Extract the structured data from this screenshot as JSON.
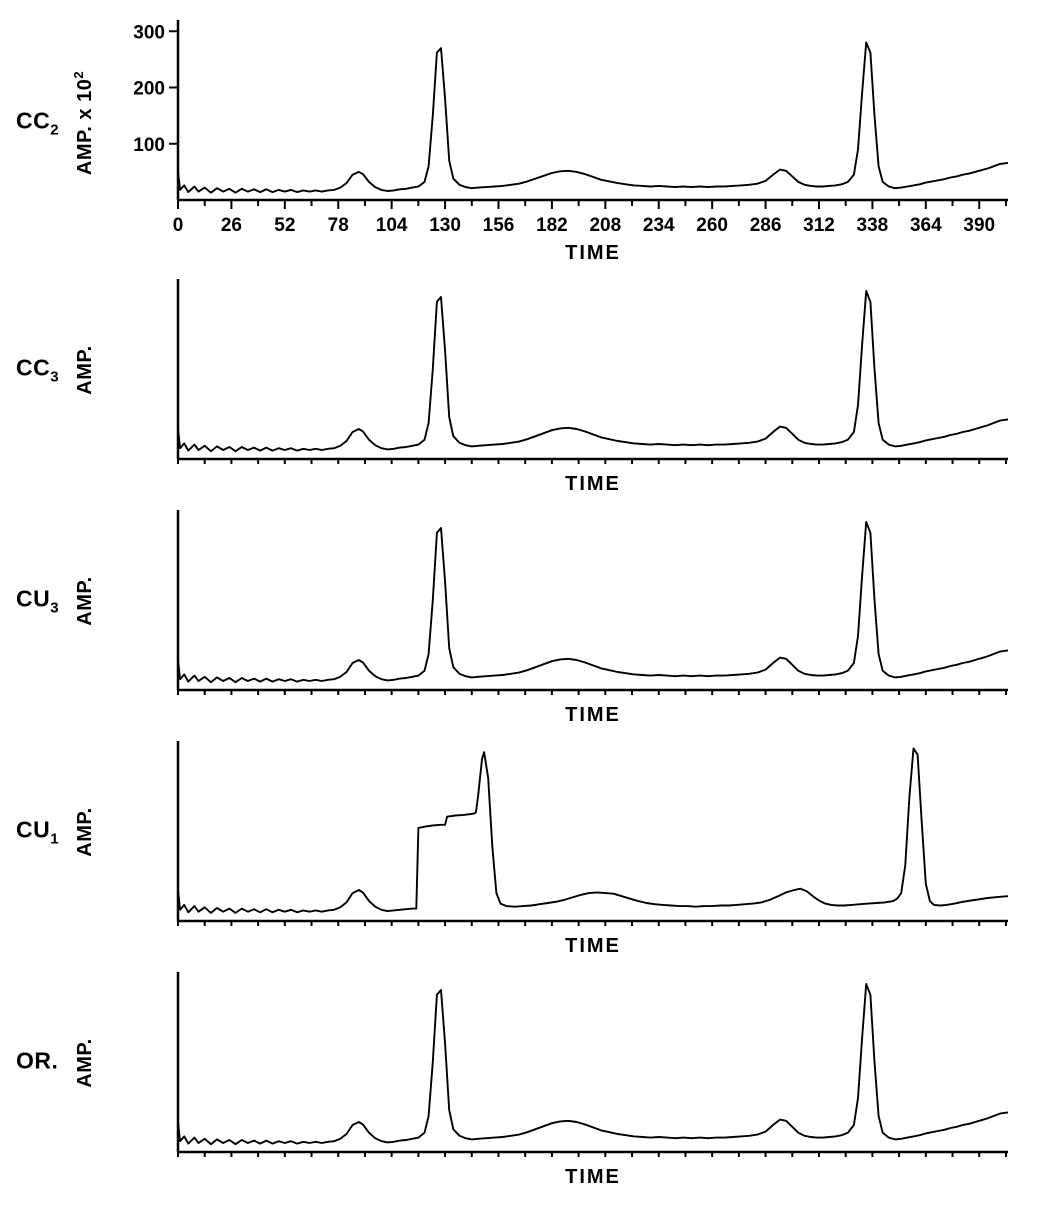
{
  "figure": {
    "background": "#ffffff",
    "line_color": "#000000",
    "description_title": ""
  },
  "chart_data": [
    {
      "type": "line",
      "label_main": "CC",
      "label_sub": "2",
      "ylabel": "AMP. x 10",
      "ylabel_sup": "2",
      "xlabel": "TIME",
      "waveform": "standard",
      "ymax": 320,
      "x_range": [
        0,
        404
      ],
      "y_ticks": [
        100,
        200,
        300
      ],
      "x_tick_labels": [
        "0",
        "26",
        "52",
        "78",
        "104",
        "130",
        "156",
        "182",
        "208",
        "234",
        "260",
        "286",
        "312",
        "338",
        "364",
        "390"
      ],
      "x_tick_step": 26,
      "grid": false,
      "legend": false
    },
    {
      "type": "line",
      "label_main": "CC",
      "label_sub": "3",
      "ylabel": "AMP.",
      "ylabel_sup": "",
      "xlabel": "TIME",
      "waveform": "standard",
      "ymax": 300,
      "x_range": [
        0,
        404
      ],
      "y_ticks": [],
      "x_tick_labels": [],
      "grid": false,
      "legend": false
    },
    {
      "type": "line",
      "label_main": "CU",
      "label_sub": "3",
      "ylabel": "AMP.",
      "ylabel_sup": "",
      "xlabel": "TIME",
      "waveform": "standard",
      "ymax": 300,
      "x_range": [
        0,
        404
      ],
      "y_ticks": [],
      "x_tick_labels": [],
      "grid": false,
      "legend": false
    },
    {
      "type": "line",
      "label_main": "CU",
      "label_sub": "1",
      "ylabel": "AMP.",
      "ylabel_sup": "",
      "xlabel": "TIME",
      "waveform": "cu1",
      "ymax": 290,
      "x_range": [
        0,
        404
      ],
      "y_ticks": [],
      "x_tick_labels": [],
      "grid": false,
      "legend": false
    },
    {
      "type": "line",
      "label_main": "OR.",
      "label_sub": "",
      "ylabel": "AMP.",
      "ylabel_sup": "",
      "xlabel": "TIME",
      "waveform": "standard",
      "ymax": 300,
      "x_range": [
        0,
        404
      ],
      "y_ticks": [],
      "x_tick_labels": [],
      "grid": false,
      "legend": false
    }
  ],
  "waveforms": {
    "standard": [
      [
        0,
        50
      ],
      [
        1,
        18
      ],
      [
        3,
        26
      ],
      [
        5,
        14
      ],
      [
        8,
        24
      ],
      [
        10,
        15
      ],
      [
        13,
        22
      ],
      [
        16,
        13
      ],
      [
        19,
        21
      ],
      [
        22,
        15
      ],
      [
        25,
        20
      ],
      [
        28,
        13
      ],
      [
        31,
        20
      ],
      [
        34,
        15
      ],
      [
        37,
        19
      ],
      [
        40,
        14
      ],
      [
        43,
        19
      ],
      [
        46,
        14
      ],
      [
        49,
        18
      ],
      [
        52,
        15
      ],
      [
        55,
        18
      ],
      [
        58,
        14
      ],
      [
        61,
        17
      ],
      [
        64,
        15
      ],
      [
        67,
        17
      ],
      [
        70,
        15
      ],
      [
        73,
        17
      ],
      [
        76,
        18
      ],
      [
        79,
        22
      ],
      [
        82,
        30
      ],
      [
        85,
        45
      ],
      [
        88,
        50
      ],
      [
        90,
        46
      ],
      [
        93,
        32
      ],
      [
        96,
        23
      ],
      [
        99,
        18
      ],
      [
        102,
        16
      ],
      [
        105,
        17
      ],
      [
        108,
        19
      ],
      [
        111,
        20
      ],
      [
        114,
        22
      ],
      [
        117,
        24
      ],
      [
        120,
        32
      ],
      [
        122,
        60
      ],
      [
        124,
        150
      ],
      [
        126,
        262
      ],
      [
        128,
        270
      ],
      [
        130,
        180
      ],
      [
        132,
        70
      ],
      [
        134,
        38
      ],
      [
        137,
        27
      ],
      [
        140,
        23
      ],
      [
        143,
        21
      ],
      [
        146,
        22
      ],
      [
        150,
        23
      ],
      [
        154,
        24
      ],
      [
        158,
        25
      ],
      [
        162,
        27
      ],
      [
        166,
        29
      ],
      [
        170,
        33
      ],
      [
        174,
        38
      ],
      [
        178,
        43
      ],
      [
        182,
        48
      ],
      [
        186,
        51
      ],
      [
        190,
        52
      ],
      [
        194,
        50
      ],
      [
        198,
        46
      ],
      [
        202,
        41
      ],
      [
        206,
        36
      ],
      [
        210,
        33
      ],
      [
        214,
        30
      ],
      [
        218,
        28
      ],
      [
        222,
        26
      ],
      [
        226,
        25
      ],
      [
        230,
        24
      ],
      [
        234,
        25
      ],
      [
        238,
        24
      ],
      [
        242,
        23
      ],
      [
        246,
        24
      ],
      [
        250,
        23
      ],
      [
        254,
        24
      ],
      [
        258,
        23
      ],
      [
        262,
        24
      ],
      [
        266,
        24
      ],
      [
        270,
        25
      ],
      [
        274,
        26
      ],
      [
        278,
        27
      ],
      [
        282,
        29
      ],
      [
        286,
        34
      ],
      [
        290,
        46
      ],
      [
        293,
        54
      ],
      [
        296,
        52
      ],
      [
        299,
        42
      ],
      [
        302,
        32
      ],
      [
        305,
        27
      ],
      [
        308,
        25
      ],
      [
        311,
        24
      ],
      [
        314,
        24
      ],
      [
        317,
        25
      ],
      [
        320,
        26
      ],
      [
        323,
        28
      ],
      [
        326,
        32
      ],
      [
        329,
        45
      ],
      [
        331,
        90
      ],
      [
        333,
        190
      ],
      [
        335,
        280
      ],
      [
        337,
        262
      ],
      [
        339,
        150
      ],
      [
        341,
        60
      ],
      [
        343,
        32
      ],
      [
        346,
        24
      ],
      [
        349,
        21
      ],
      [
        352,
        22
      ],
      [
        355,
        24
      ],
      [
        358,
        26
      ],
      [
        361,
        28
      ],
      [
        364,
        31
      ],
      [
        367,
        33
      ],
      [
        370,
        35
      ],
      [
        373,
        37
      ],
      [
        376,
        40
      ],
      [
        379,
        42
      ],
      [
        382,
        45
      ],
      [
        385,
        47
      ],
      [
        388,
        50
      ],
      [
        391,
        53
      ],
      [
        394,
        56
      ],
      [
        397,
        60
      ],
      [
        400,
        64
      ],
      [
        404,
        66
      ]
    ],
    "cu1": [
      [
        0,
        50
      ],
      [
        1,
        18
      ],
      [
        3,
        26
      ],
      [
        5,
        14
      ],
      [
        8,
        24
      ],
      [
        10,
        15
      ],
      [
        13,
        22
      ],
      [
        16,
        13
      ],
      [
        19,
        21
      ],
      [
        22,
        15
      ],
      [
        25,
        20
      ],
      [
        28,
        13
      ],
      [
        31,
        20
      ],
      [
        34,
        15
      ],
      [
        37,
        19
      ],
      [
        40,
        14
      ],
      [
        43,
        19
      ],
      [
        46,
        14
      ],
      [
        49,
        18
      ],
      [
        52,
        15
      ],
      [
        55,
        18
      ],
      [
        58,
        14
      ],
      [
        61,
        17
      ],
      [
        64,
        15
      ],
      [
        67,
        17
      ],
      [
        70,
        15
      ],
      [
        73,
        17
      ],
      [
        76,
        18
      ],
      [
        79,
        22
      ],
      [
        82,
        30
      ],
      [
        85,
        45
      ],
      [
        88,
        50
      ],
      [
        90,
        46
      ],
      [
        93,
        32
      ],
      [
        96,
        23
      ],
      [
        99,
        18
      ],
      [
        102,
        16
      ],
      [
        105,
        17
      ],
      [
        108,
        18
      ],
      [
        111,
        19
      ],
      [
        114,
        20
      ],
      [
        116,
        20
      ],
      [
        117,
        150
      ],
      [
        120,
        152
      ],
      [
        124,
        154
      ],
      [
        128,
        155
      ],
      [
        130,
        155
      ],
      [
        131,
        168
      ],
      [
        135,
        170
      ],
      [
        139,
        171
      ],
      [
        142,
        172
      ],
      [
        144,
        173
      ],
      [
        145,
        175
      ],
      [
        146,
        200
      ],
      [
        148,
        262
      ],
      [
        149,
        272
      ],
      [
        151,
        230
      ],
      [
        153,
        120
      ],
      [
        155,
        45
      ],
      [
        157,
        28
      ],
      [
        160,
        24
      ],
      [
        164,
        23
      ],
      [
        168,
        24
      ],
      [
        172,
        25
      ],
      [
        176,
        27
      ],
      [
        180,
        29
      ],
      [
        184,
        31
      ],
      [
        188,
        34
      ],
      [
        192,
        38
      ],
      [
        196,
        42
      ],
      [
        200,
        45
      ],
      [
        204,
        46
      ],
      [
        208,
        45
      ],
      [
        212,
        44
      ],
      [
        216,
        40
      ],
      [
        220,
        36
      ],
      [
        224,
        32
      ],
      [
        228,
        29
      ],
      [
        232,
        27
      ],
      [
        236,
        26
      ],
      [
        240,
        25
      ],
      [
        244,
        24
      ],
      [
        248,
        24
      ],
      [
        252,
        23
      ],
      [
        256,
        24
      ],
      [
        260,
        24
      ],
      [
        264,
        25
      ],
      [
        268,
        25
      ],
      [
        272,
        26
      ],
      [
        276,
        27
      ],
      [
        280,
        28
      ],
      [
        284,
        30
      ],
      [
        288,
        34
      ],
      [
        292,
        40
      ],
      [
        296,
        46
      ],
      [
        300,
        50
      ],
      [
        303,
        52
      ],
      [
        306,
        48
      ],
      [
        309,
        40
      ],
      [
        312,
        33
      ],
      [
        315,
        28
      ],
      [
        318,
        26
      ],
      [
        321,
        25
      ],
      [
        324,
        25
      ],
      [
        328,
        26
      ],
      [
        332,
        27
      ],
      [
        336,
        28
      ],
      [
        340,
        29
      ],
      [
        344,
        30
      ],
      [
        348,
        32
      ],
      [
        350,
        36
      ],
      [
        352,
        45
      ],
      [
        354,
        90
      ],
      [
        356,
        200
      ],
      [
        358,
        278
      ],
      [
        360,
        268
      ],
      [
        362,
        160
      ],
      [
        364,
        60
      ],
      [
        366,
        32
      ],
      [
        368,
        26
      ],
      [
        371,
        25
      ],
      [
        374,
        26
      ],
      [
        378,
        28
      ],
      [
        382,
        31
      ],
      [
        386,
        33
      ],
      [
        390,
        35
      ],
      [
        394,
        37
      ],
      [
        397,
        38
      ],
      [
        400,
        39
      ],
      [
        404,
        40
      ]
    ]
  }
}
